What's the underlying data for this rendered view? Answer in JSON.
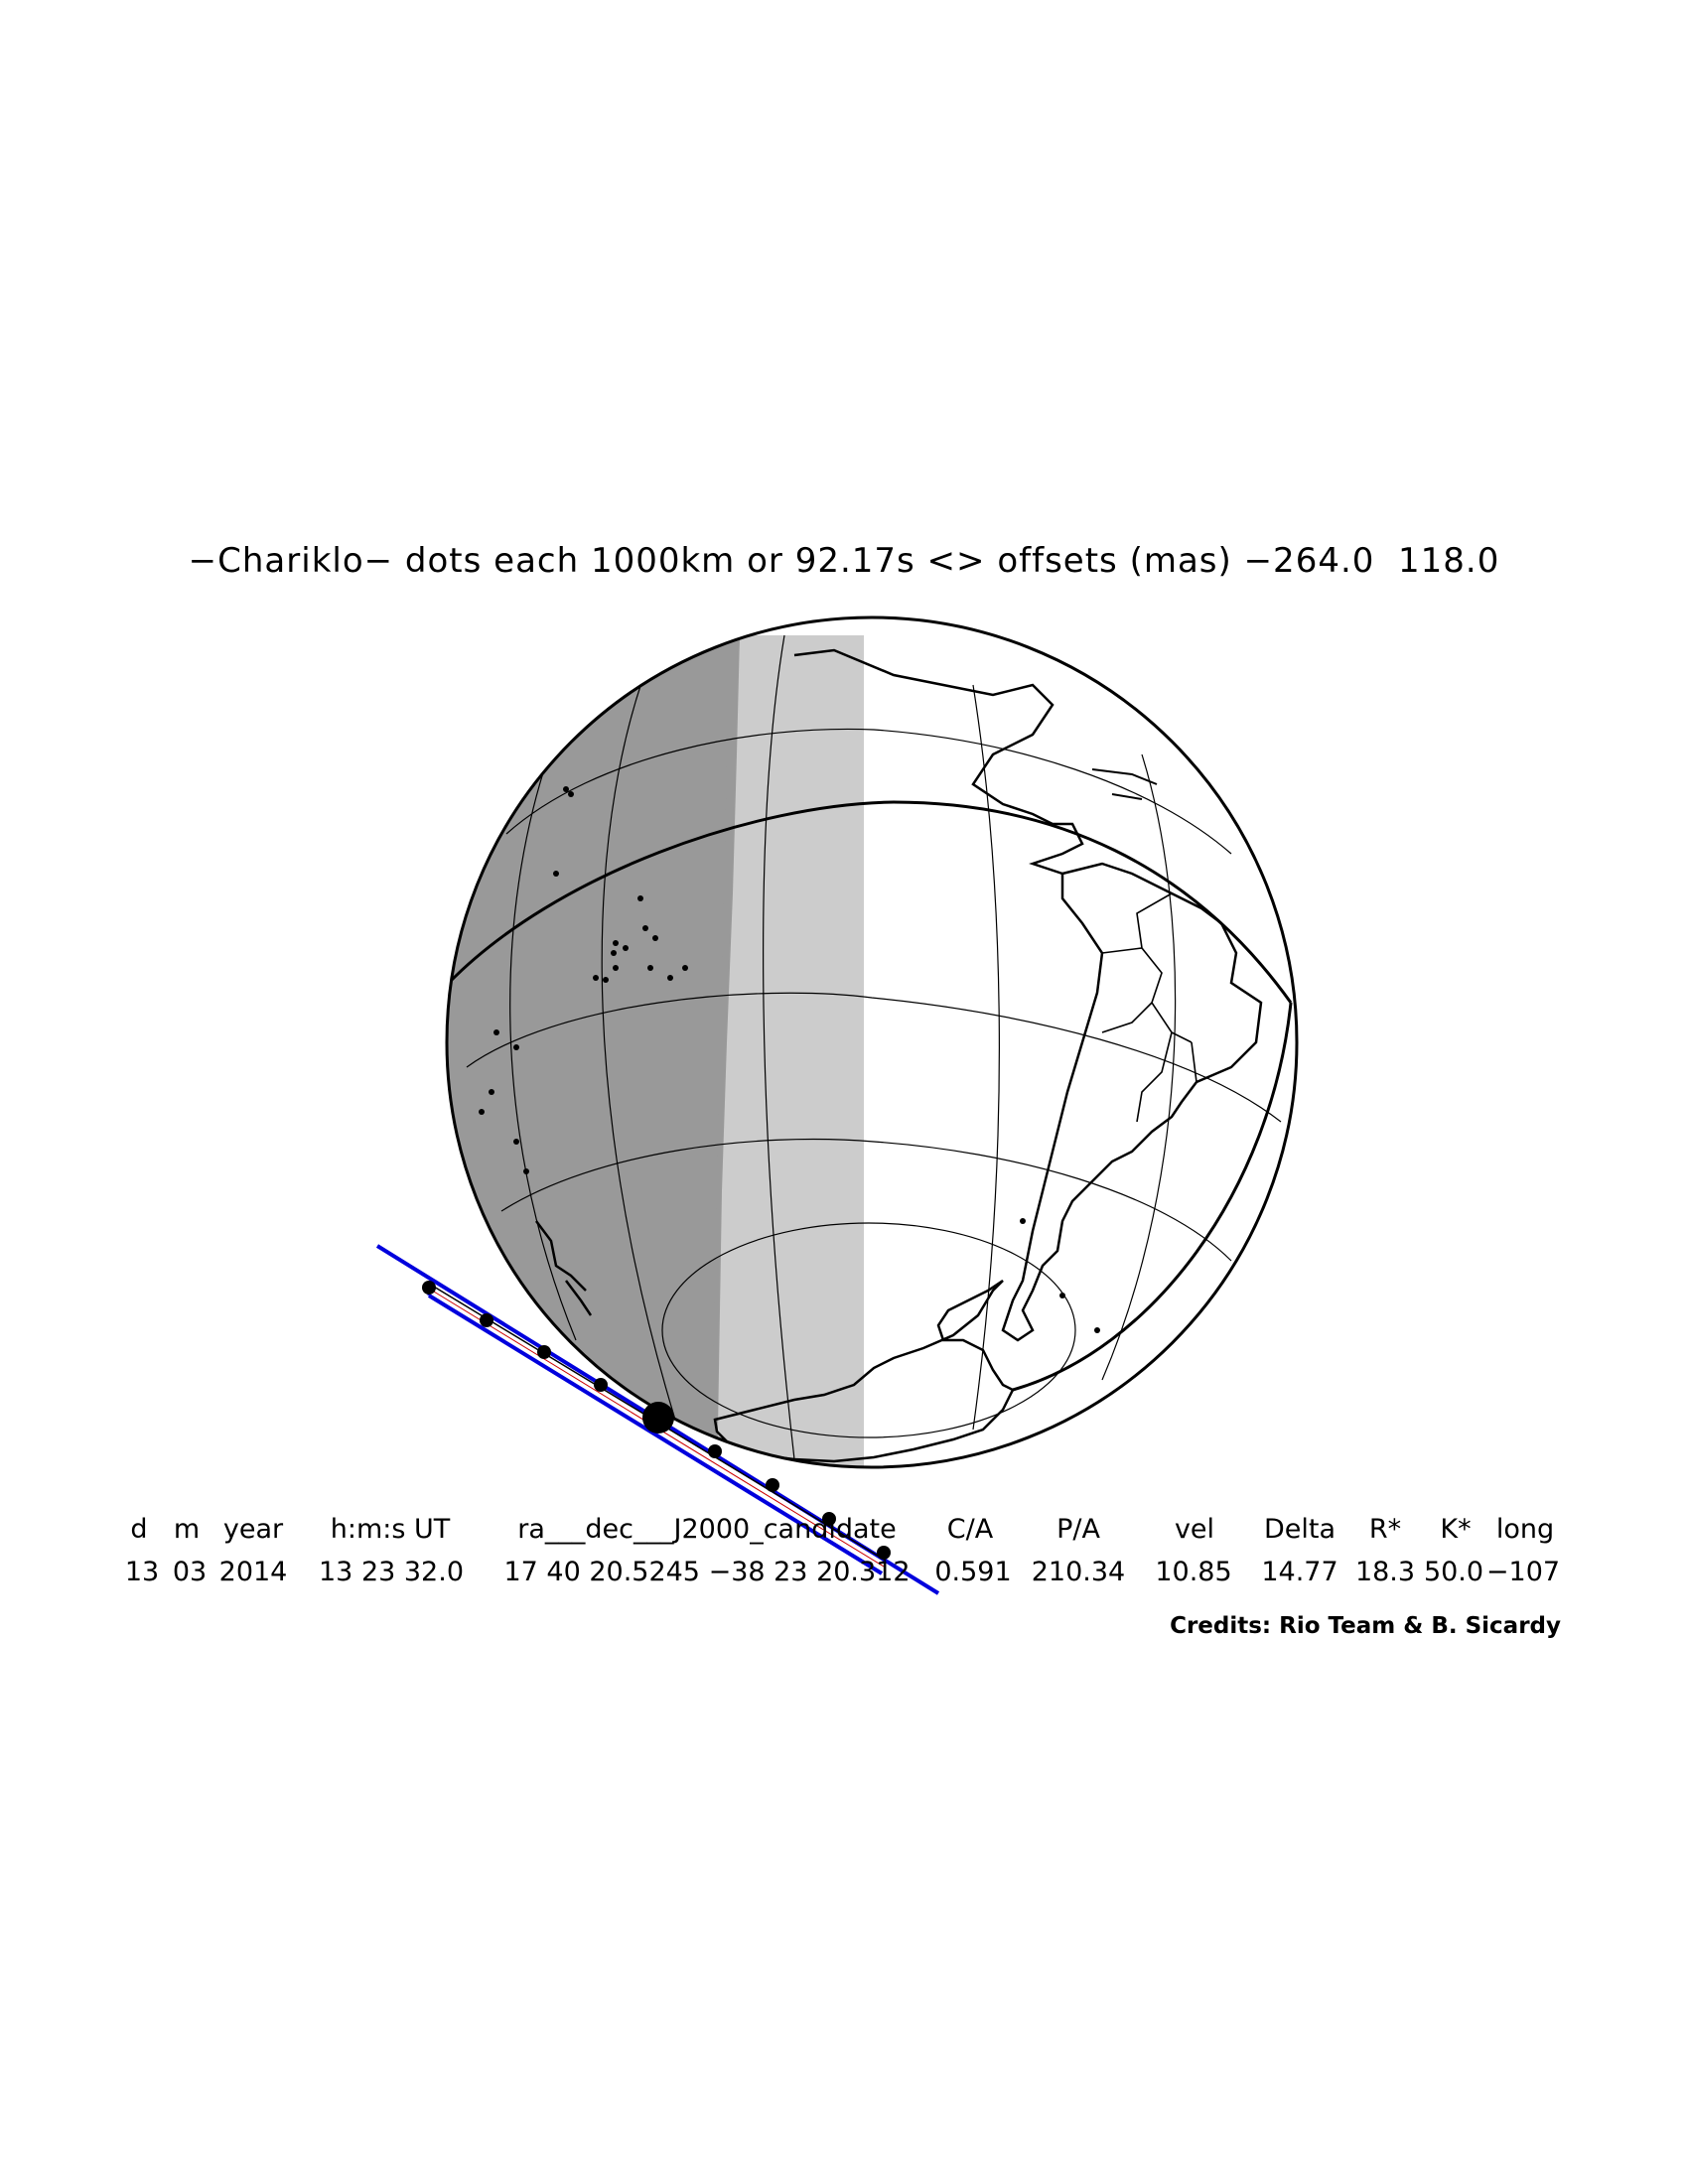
{
  "title": "−Chariklo− dots each 1000km or 92.17s <> offsets (mas) −264.0  118.0",
  "table": {
    "headers": [
      "d",
      "m",
      "year",
      "h:m:s UT",
      "ra___dec___J2000_candidate",
      "C/A",
      "P/A",
      "vel",
      "Delta",
      "R*",
      "K*",
      "long"
    ],
    "values": [
      "13",
      "03",
      "2014",
      "13 23 32.0",
      "17 40 20.5245 −38 23 20.312",
      "0.591",
      "210.34",
      "10.85",
      "14.77",
      "18.3",
      "50.0",
      "−107"
    ]
  },
  "credits": "Credits: Rio Team & B. Sicardy",
  "colors": {
    "night": "#999999",
    "twilight": "#cccccc",
    "day": "#ffffff",
    "track": "#0000dd",
    "outline": "#000000"
  }
}
